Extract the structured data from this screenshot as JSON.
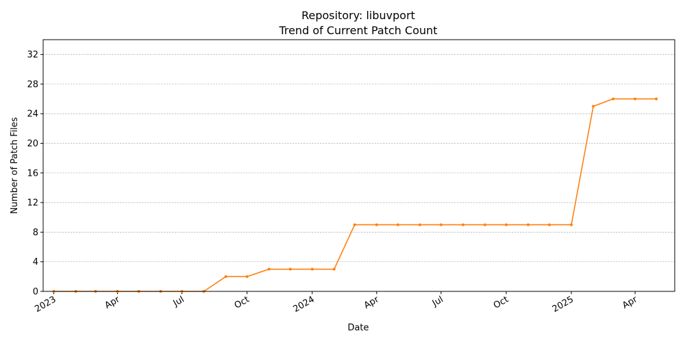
{
  "chart_data": {
    "type": "line",
    "title": "Repository: libuvport",
    "subtitle": "Trend of Current Patch Count",
    "xlabel": "Date",
    "ylabel": "Number of Patch Files",
    "ylim": [
      0,
      34
    ],
    "yticks": [
      0,
      4,
      8,
      12,
      16,
      20,
      24,
      28,
      32
    ],
    "xlim": [
      "2022-12-17",
      "2025-05-27"
    ],
    "xticks": [
      {
        "date": "2023-01-01",
        "label": "2023"
      },
      {
        "date": "2023-04-01",
        "label": "Apr"
      },
      {
        "date": "2023-07-01",
        "label": "Jul"
      },
      {
        "date": "2023-10-01",
        "label": "Oct"
      },
      {
        "date": "2024-01-01",
        "label": "2024"
      },
      {
        "date": "2024-04-01",
        "label": "Apr"
      },
      {
        "date": "2024-07-01",
        "label": "Jul"
      },
      {
        "date": "2024-10-01",
        "label": "Oct"
      },
      {
        "date": "2025-01-01",
        "label": "2025"
      },
      {
        "date": "2025-04-01",
        "label": "Apr"
      }
    ],
    "grid": "y",
    "line_color": "#ff7f0e",
    "series": [
      {
        "x": [
          "2023-01-01",
          "2023-02-01",
          "2023-03-01",
          "2023-04-01",
          "2023-05-01",
          "2023-06-01",
          "2023-07-01",
          "2023-08-01",
          "2023-09-01",
          "2023-10-01",
          "2023-11-01",
          "2023-12-01",
          "2024-01-01",
          "2024-02-01",
          "2024-03-01",
          "2024-04-01",
          "2024-05-01",
          "2024-06-01",
          "2024-07-01",
          "2024-08-01",
          "2024-09-01",
          "2024-10-01",
          "2024-11-01",
          "2024-12-01",
          "2025-01-01",
          "2025-02-01",
          "2025-03-01",
          "2025-04-01",
          "2025-05-01"
        ],
        "values": [
          0,
          0,
          0,
          0,
          0,
          0,
          0,
          0,
          2,
          2,
          3,
          3,
          3,
          3,
          9,
          9,
          9,
          9,
          9,
          9,
          9,
          9,
          9,
          9,
          9,
          25,
          26,
          26,
          26
        ]
      }
    ]
  }
}
